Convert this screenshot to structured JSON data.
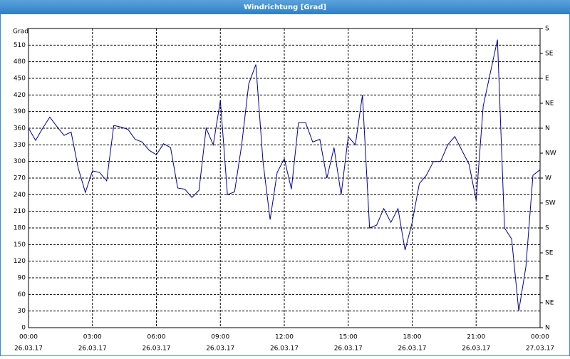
{
  "chart_data": {
    "type": "line",
    "title": "Windrichtung [Grad]",
    "ylabel": "Grad",
    "x": [
      "26.03.17 00:00",
      "26.03.17 00:20",
      "26.03.17 00:40",
      "26.03.17 01:00",
      "26.03.17 01:20",
      "26.03.17 01:40",
      "26.03.17 02:00",
      "26.03.17 02:20",
      "26.03.17 02:40",
      "26.03.17 03:00",
      "26.03.17 03:20",
      "26.03.17 03:40",
      "26.03.17 04:00",
      "26.03.17 04:20",
      "26.03.17 04:40",
      "26.03.17 05:00",
      "26.03.17 05:20",
      "26.03.17 05:40",
      "26.03.17 06:00",
      "26.03.17 06:20",
      "26.03.17 06:40",
      "26.03.17 07:00",
      "26.03.17 07:20",
      "26.03.17 07:40",
      "26.03.17 08:00",
      "26.03.17 08:20",
      "26.03.17 08:40",
      "26.03.17 09:00",
      "26.03.17 09:20",
      "26.03.17 09:40",
      "26.03.17 10:00",
      "26.03.17 10:20",
      "26.03.17 10:40",
      "26.03.17 11:00",
      "26.03.17 11:20",
      "26.03.17 11:40",
      "26.03.17 12:00",
      "26.03.17 12:20",
      "26.03.17 12:40",
      "26.03.17 13:00",
      "26.03.17 13:20",
      "26.03.17 13:40",
      "26.03.17 14:00",
      "26.03.17 14:20",
      "26.03.17 14:40",
      "26.03.17 15:00",
      "26.03.17 15:20",
      "26.03.17 15:40",
      "26.03.17 16:00",
      "26.03.17 16:20",
      "26.03.17 16:40",
      "26.03.17 17:00",
      "26.03.17 17:20",
      "26.03.17 17:40",
      "26.03.17 18:00",
      "26.03.17 18:20",
      "26.03.17 18:40",
      "26.03.17 19:00",
      "26.03.17 19:20",
      "26.03.17 19:40",
      "26.03.17 20:00",
      "26.03.17 20:20",
      "26.03.17 20:40",
      "26.03.17 21:00",
      "26.03.17 21:20",
      "26.03.17 21:40",
      "26.03.17 22:00",
      "26.03.17 22:20",
      "26.03.17 22:40",
      "26.03.17 23:00",
      "26.03.17 23:20",
      "26.03.17 23:40",
      "27.03.17 00:00"
    ],
    "series": [
      {
        "name": "Windrichtung",
        "color": "#0000a0",
        "values": [
          360,
          338,
          360,
          380,
          363,
          347,
          353,
          288,
          244,
          283,
          280,
          265,
          365,
          362,
          358,
          340,
          335,
          320,
          312,
          332,
          325,
          252,
          250,
          235,
          248,
          360,
          330,
          410,
          240,
          245,
          330,
          440,
          475,
          300,
          195,
          280,
          305,
          250,
          370,
          370,
          335,
          340,
          270,
          325,
          240,
          345,
          330,
          420,
          180,
          185,
          215,
          190,
          215,
          140,
          190,
          260,
          275,
          300,
          300,
          330,
          345,
          320,
          295,
          230,
          400,
          460,
          520,
          180,
          160,
          30,
          110,
          275,
          285
        ]
      }
    ],
    "xlim": [
      "26.03.17 00:00",
      "27.03.17 00:00"
    ],
    "xticks": [
      {
        "value": "26.03.17 00:00",
        "label": [
          "00:00",
          "26.03.17"
        ]
      },
      {
        "value": "26.03.17 03:00",
        "label": [
          "03:00",
          "26.03.17"
        ]
      },
      {
        "value": "26.03.17 06:00",
        "label": [
          "06:00",
          "26.03.17"
        ]
      },
      {
        "value": "26.03.17 09:00",
        "label": [
          "09:00",
          "26.03.17"
        ]
      },
      {
        "value": "26.03.17 12:00",
        "label": [
          "12:00",
          "26.03.17"
        ]
      },
      {
        "value": "26.03.17 15:00",
        "label": [
          "15:00",
          "26.03.17"
        ]
      },
      {
        "value": "26.03.17 18:00",
        "label": [
          "18:00",
          "26.03.17"
        ]
      },
      {
        "value": "26.03.17 21:00",
        "label": [
          "21:00",
          "26.03.17"
        ]
      },
      {
        "value": "27.03.17 00:00",
        "label": [
          "00:00",
          "27.03.17"
        ]
      }
    ],
    "ylim": [
      0,
      540
    ],
    "yticks": [
      0,
      30,
      60,
      90,
      120,
      150,
      180,
      210,
      240,
      270,
      300,
      330,
      360,
      390,
      420,
      450,
      480,
      510
    ],
    "y2lim": [
      0,
      540
    ],
    "y2ticks": [
      {
        "value": 0,
        "label": "N"
      },
      {
        "value": 45,
        "label": "NE"
      },
      {
        "value": 90,
        "label": "E"
      },
      {
        "value": 135,
        "label": "SE"
      },
      {
        "value": 180,
        "label": "S"
      },
      {
        "value": 225,
        "label": "SW"
      },
      {
        "value": 270,
        "label": "W"
      },
      {
        "value": 315,
        "label": "NW"
      },
      {
        "value": 360,
        "label": "N"
      },
      {
        "value": 405,
        "label": "NE"
      },
      {
        "value": 450,
        "label": "E"
      },
      {
        "value": 495,
        "label": "SE"
      },
      {
        "value": 540,
        "label": "S"
      }
    ],
    "grid": true
  }
}
